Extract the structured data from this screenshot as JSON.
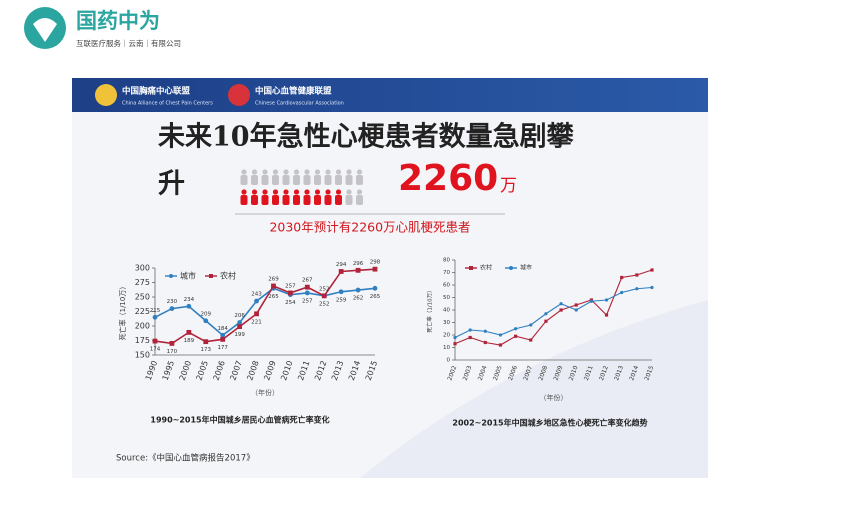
{
  "logo": {
    "name": "国药中为",
    "tagline": "互联医疗服务｜云南｜有限公司"
  },
  "slide": {
    "orgs": [
      {
        "name": "中国胸痛中心联盟",
        "en": "China Alliance of Chest Pain Centers"
      },
      {
        "name": "中国心血管健康联盟",
        "en": "Chinese Cardiovascular Association"
      }
    ],
    "title": "未来10年急性心梗患者数量急剧攀",
    "title_cont": "升",
    "big_number": "2260",
    "big_unit": "万",
    "subtitle": "2030年预计有2260万心肌梗死患者",
    "source": "Source:《中国心血管病报告2017》"
  },
  "chart_data": [
    {
      "type": "line",
      "caption": "1990~2015年中国城乡居民心血管病死亡率变化",
      "y_label": "死亡率（1/10万）",
      "x_label": "（年份）",
      "categories": [
        "1990",
        "1995",
        "2000",
        "2005",
        "2006",
        "2007",
        "2008",
        "2009",
        "2010",
        "2011",
        "2012",
        "2013",
        "2014",
        "2015"
      ],
      "series": [
        {
          "name": "城市",
          "color": "#2f7fc1",
          "marker": "circle",
          "values": [
            215,
            230,
            234,
            209,
            184,
            206,
            243,
            265,
            254,
            257,
            252,
            259,
            262,
            265
          ]
        },
        {
          "name": "农村",
          "color": "#b0233a",
          "marker": "square",
          "values": [
            174,
            170,
            189,
            173,
            177,
            199,
            221,
            269,
            257,
            267,
            252,
            294,
            296,
            298
          ]
        }
      ],
      "ylim": [
        150,
        300
      ],
      "yticks": [
        150,
        175,
        200,
        225,
        250,
        275,
        300
      ],
      "value_labels_shown": true,
      "legend": "top-left"
    },
    {
      "type": "line",
      "caption": "2002~2015年中国城乡地区急性心梗死亡率变化趋势",
      "y_label": "死亡率（1/10万）",
      "x_label": "（年份）",
      "categories": [
        "2002",
        "2003",
        "2004",
        "2005",
        "2006",
        "2007",
        "2008",
        "2009",
        "2010",
        "2011",
        "2012",
        "2013",
        "2014",
        "2015"
      ],
      "series": [
        {
          "name": "农村",
          "color": "#b0233a",
          "marker": "square",
          "values": [
            13,
            18,
            14,
            12,
            19,
            16,
            31,
            40,
            44,
            48,
            36,
            66,
            68,
            72
          ]
        },
        {
          "name": "城市",
          "color": "#2f7fc1",
          "marker": "circle",
          "values": [
            18,
            24,
            23,
            20,
            25,
            28,
            37,
            45,
            40,
            47,
            48,
            54,
            57,
            58
          ]
        }
      ],
      "ylim": [
        0,
        80
      ],
      "yticks": [
        0,
        10,
        20,
        30,
        40,
        50,
        60,
        70,
        80
      ],
      "value_labels_shown": false,
      "legend": "top-left"
    }
  ]
}
